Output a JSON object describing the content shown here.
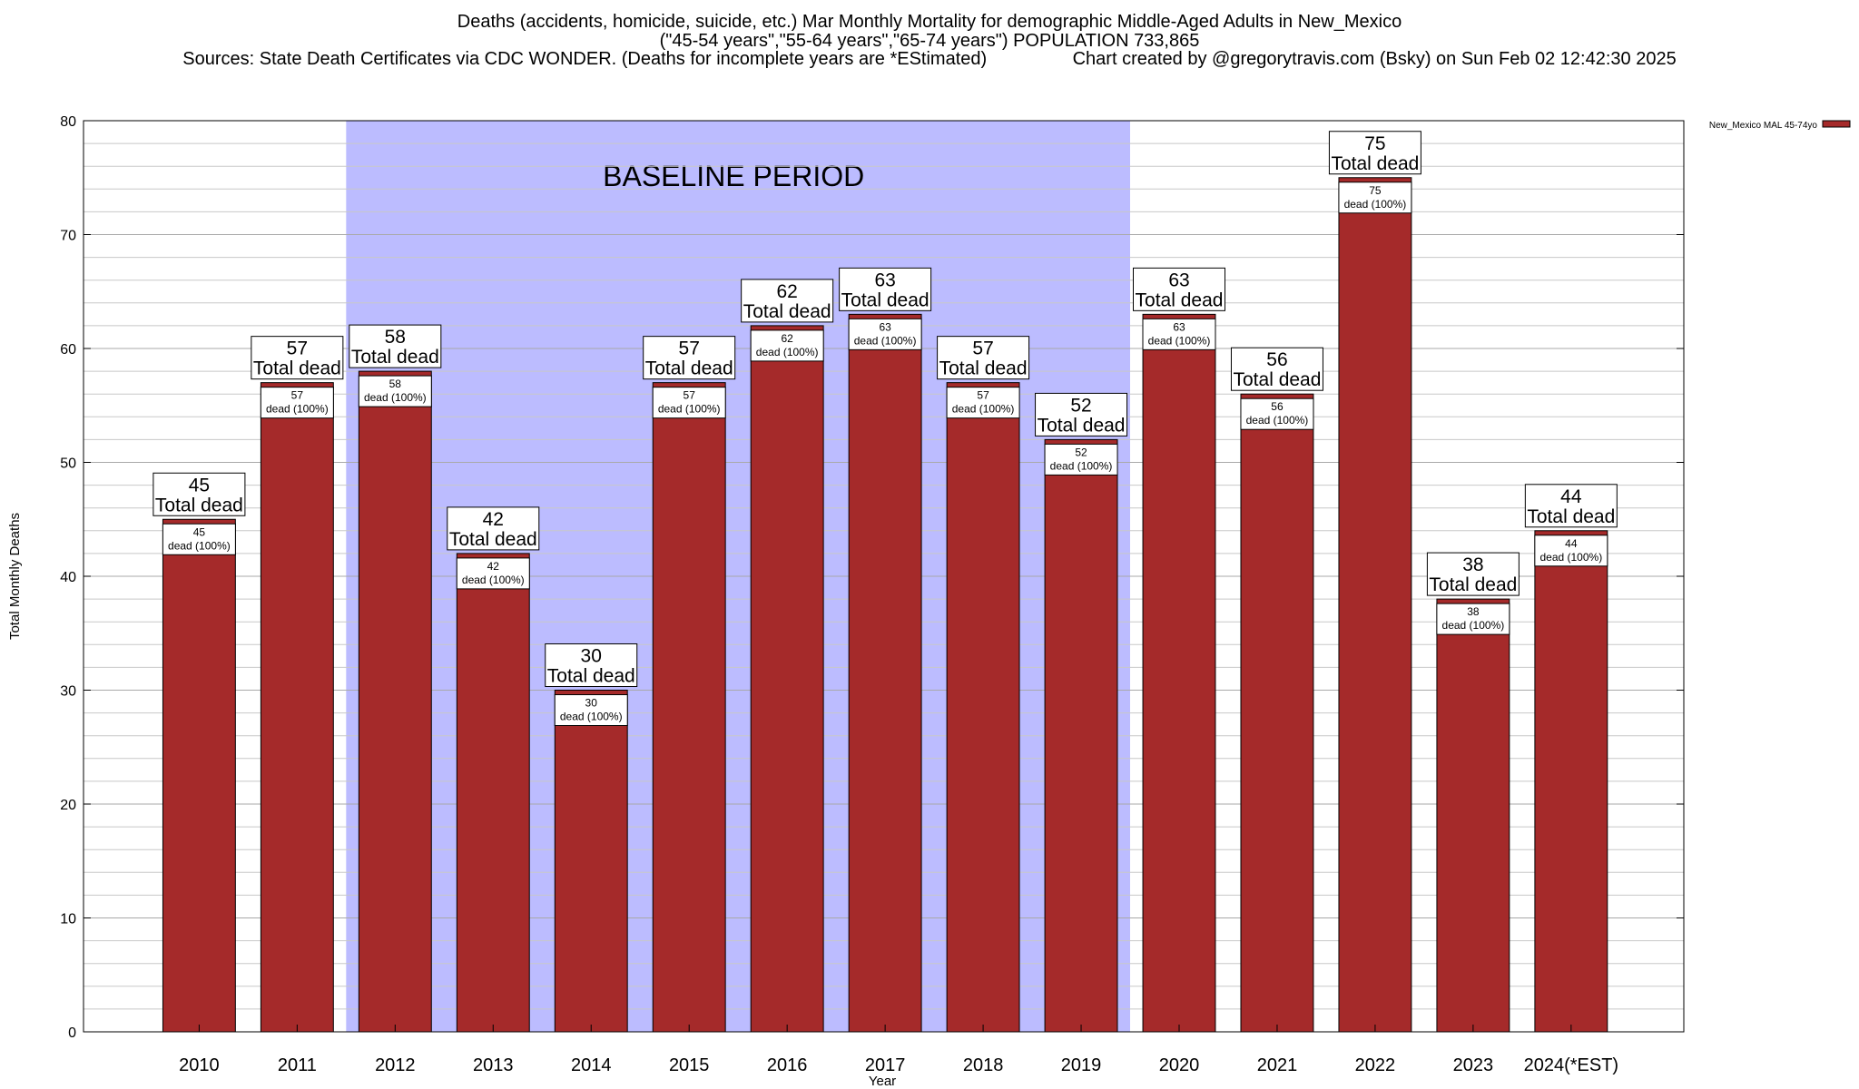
{
  "title": {
    "line1": "Deaths (accidents, homicide, suicide, etc.) Mar Monthly Mortality for demographic Middle-Aged Adults in New_Mexico",
    "line2": "(\"45-54 years\",\"55-64 years\",\"65-74 years\") POPULATION 733,865",
    "line3": "Sources: State Death Certificates via CDC WONDER. (Deaths for incomplete years are *EStimated)                 Chart created by @gregorytravis.com (Bsky) on Sun Feb 02 12:42:30 2025"
  },
  "chart_data": {
    "type": "bar",
    "categories": [
      "2010",
      "2011",
      "2012",
      "2013",
      "2014",
      "2015",
      "2016",
      "2017",
      "2018",
      "2019",
      "2020",
      "2021",
      "2022",
      "2023",
      "2024(*EST)"
    ],
    "series": [
      {
        "name": "New_Mexico MAL 45-74yo",
        "values": [
          45,
          57,
          58,
          42,
          30,
          57,
          62,
          63,
          57,
          52,
          63,
          56,
          75,
          38,
          44
        ],
        "color": "#a52a2a"
      }
    ],
    "xlabel": "Year",
    "ylabel": "Total Monthly Deaths",
    "ylim": [
      0,
      80
    ],
    "yticks": [
      0,
      10,
      20,
      30,
      40,
      50,
      60,
      70,
      80
    ],
    "grid": true,
    "legend": "top-right",
    "total_label_suffix": "Total dead",
    "segment_label_suffix": "dead (100%)",
    "annotation": {
      "text": "BASELINE PERIOD",
      "from_category": "2012",
      "to_category": "2019",
      "color": "#bcbcff"
    }
  }
}
